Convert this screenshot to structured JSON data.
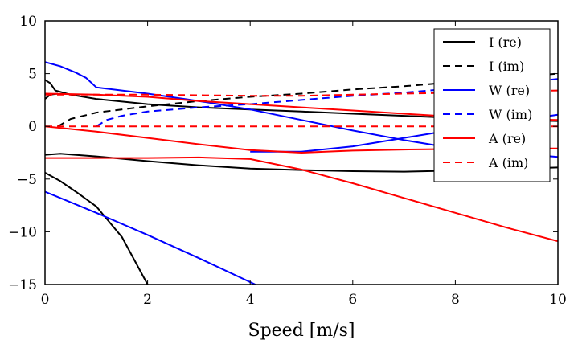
{
  "chart_data": {
    "type": "line",
    "title": "",
    "xlabel": "Speed [m/s]",
    "ylabel": "",
    "xlim": [
      0,
      10
    ],
    "ylim": [
      -15,
      10
    ],
    "xticks": [
      0,
      2,
      4,
      6,
      8,
      10
    ],
    "yticks": [
      10,
      5,
      0,
      -5,
      -10,
      -15
    ],
    "xtick_labels": [
      "0",
      "2",
      "4",
      "6",
      "8",
      "10"
    ],
    "ytick_labels": [
      "10",
      "5",
      "0",
      "−5",
      "−10",
      "−15"
    ],
    "grid": false,
    "legend_position": "top-right",
    "legend": [
      {
        "label": "I (re)",
        "color": "#000000",
        "dashed": false
      },
      {
        "label": "I (im)",
        "color": "#000000",
        "dashed": true
      },
      {
        "label": "W (re)",
        "color": "#0000ff",
        "dashed": false
      },
      {
        "label": "W (im)",
        "color": "#0000ff",
        "dashed": true
      },
      {
        "label": "A (re)",
        "color": "#ff0000",
        "dashed": false
      },
      {
        "label": "A (im)",
        "color": "#ff0000",
        "dashed": true
      }
    ],
    "series": [
      {
        "group": "I (re)",
        "color": "#000000",
        "dashed": false,
        "points": [
          [
            0,
            4.4
          ],
          [
            0.1,
            4.1
          ],
          [
            0.2,
            3.4
          ],
          [
            0.5,
            3.0
          ],
          [
            1,
            2.6
          ],
          [
            2,
            2.1
          ],
          [
            3,
            1.8
          ],
          [
            4,
            1.6
          ],
          [
            5,
            1.4
          ],
          [
            6,
            1.2
          ],
          [
            7,
            1.0
          ],
          [
            8,
            0.8
          ],
          [
            9,
            0.6
          ],
          [
            10,
            0.5
          ]
        ]
      },
      {
        "group": "I (re)",
        "color": "#000000",
        "dashed": false,
        "points": [
          [
            0,
            -2.7
          ],
          [
            0.3,
            -2.6
          ],
          [
            1,
            -2.85
          ],
          [
            2,
            -3.3
          ],
          [
            3,
            -3.7
          ],
          [
            4,
            -4.0
          ],
          [
            5,
            -4.15
          ],
          [
            6,
            -4.25
          ],
          [
            7,
            -4.3
          ],
          [
            8,
            -4.2
          ],
          [
            9,
            -4.05
          ],
          [
            10,
            -3.9
          ]
        ]
      },
      {
        "group": "I (re)",
        "color": "#000000",
        "dashed": false,
        "points": [
          [
            0,
            -4.4
          ],
          [
            0.3,
            -5.2
          ],
          [
            0.6,
            -6.2
          ],
          [
            1,
            -7.6
          ],
          [
            1.5,
            -10.5
          ],
          [
            2,
            -15.0
          ]
        ]
      },
      {
        "group": "I (re)",
        "color": "#000000",
        "dashed": false,
        "points": [
          [
            0,
            2.6
          ],
          [
            0.1,
            3.0
          ],
          [
            0.25,
            3.1
          ]
        ]
      },
      {
        "group": "I (im)",
        "color": "#000000",
        "dashed": true,
        "points": [
          [
            0.25,
            0.0
          ],
          [
            0.5,
            0.7
          ],
          [
            1,
            1.3
          ],
          [
            2,
            1.9
          ],
          [
            3,
            2.4
          ],
          [
            4,
            2.8
          ],
          [
            5,
            3.1
          ],
          [
            6,
            3.5
          ],
          [
            7,
            3.8
          ],
          [
            8,
            4.2
          ],
          [
            9,
            4.6
          ],
          [
            10,
            5.0
          ]
        ]
      },
      {
        "group": "W (re)",
        "color": "#0000ff",
        "dashed": false,
        "points": [
          [
            0,
            6.1
          ],
          [
            0.3,
            5.7
          ],
          [
            0.6,
            5.1
          ],
          [
            0.8,
            4.6
          ],
          [
            1,
            3.7
          ],
          [
            2,
            3.1
          ],
          [
            3,
            2.4
          ],
          [
            4,
            1.6
          ],
          [
            5,
            0.6
          ],
          [
            6,
            -0.4
          ],
          [
            7,
            -1.3
          ],
          [
            8,
            -2.1
          ],
          [
            9,
            -2.5
          ],
          [
            10,
            -2.9
          ]
        ]
      },
      {
        "group": "W (re)",
        "color": "#0000ff",
        "dashed": false,
        "points": [
          [
            0,
            -6.2
          ],
          [
            1,
            -8.2
          ],
          [
            2,
            -10.3
          ],
          [
            3,
            -12.5
          ],
          [
            4.1,
            -15.0
          ]
        ]
      },
      {
        "group": "W (re)",
        "color": "#0000ff",
        "dashed": false,
        "points": [
          [
            4,
            -2.4
          ],
          [
            5,
            -2.4
          ],
          [
            6,
            -1.9
          ],
          [
            7,
            -1.1
          ],
          [
            8,
            -0.3
          ],
          [
            9,
            0.4
          ],
          [
            10,
            1.1
          ]
        ]
      },
      {
        "group": "W (im)",
        "color": "#0000ff",
        "dashed": true,
        "points": [
          [
            1,
            0.0
          ],
          [
            1.2,
            0.6
          ],
          [
            1.5,
            1.0
          ],
          [
            2,
            1.4
          ],
          [
            3,
            1.8
          ],
          [
            4,
            2.1
          ],
          [
            5,
            2.5
          ],
          [
            6,
            2.9
          ],
          [
            7,
            3.2
          ],
          [
            8,
            3.6
          ],
          [
            9,
            4.0
          ],
          [
            10,
            4.5
          ]
        ]
      },
      {
        "group": "A (re)",
        "color": "#ff0000",
        "dashed": false,
        "points": [
          [
            0,
            3.1
          ],
          [
            1,
            3.0
          ],
          [
            2,
            2.8
          ],
          [
            3,
            2.4
          ],
          [
            4,
            2.1
          ],
          [
            5,
            1.8
          ],
          [
            6,
            1.5
          ],
          [
            7,
            1.2
          ],
          [
            8,
            0.9
          ],
          [
            9,
            0.7
          ],
          [
            10,
            0.6
          ]
        ]
      },
      {
        "group": "A (re)",
        "color": "#ff0000",
        "dashed": false,
        "points": [
          [
            0,
            0.0
          ],
          [
            1,
            -0.5
          ],
          [
            2,
            -1.1
          ],
          [
            3,
            -1.7
          ],
          [
            4,
            -2.25
          ],
          [
            5,
            -2.5
          ],
          [
            6,
            -2.3
          ],
          [
            7,
            -2.2
          ],
          [
            8,
            -2.15
          ],
          [
            9,
            -2.1
          ],
          [
            10,
            -2.1
          ]
        ]
      },
      {
        "group": "A (re)",
        "color": "#ff0000",
        "dashed": false,
        "points": [
          [
            0,
            -3.0
          ],
          [
            1,
            -3.0
          ],
          [
            2,
            -3.0
          ],
          [
            3,
            -2.95
          ],
          [
            4,
            -3.1
          ],
          [
            5,
            -4.1
          ],
          [
            6,
            -5.4
          ],
          [
            7,
            -6.8
          ],
          [
            8,
            -8.2
          ],
          [
            9,
            -9.6
          ],
          [
            10,
            -10.9
          ]
        ]
      },
      {
        "group": "A (im)",
        "color": "#ff0000",
        "dashed": true,
        "points": [
          [
            0,
            3.0
          ],
          [
            1,
            3.0
          ],
          [
            2,
            3.0
          ],
          [
            3,
            2.95
          ],
          [
            4,
            2.9
          ],
          [
            5,
            2.9
          ],
          [
            6,
            3.0
          ],
          [
            7,
            3.1
          ],
          [
            8,
            3.2
          ],
          [
            9,
            3.3
          ],
          [
            10,
            3.4
          ]
        ]
      },
      {
        "group": "A (im)",
        "color": "#ff0000",
        "dashed": true,
        "points": [
          [
            0,
            0.0
          ],
          [
            10,
            0.0
          ]
        ]
      }
    ]
  }
}
